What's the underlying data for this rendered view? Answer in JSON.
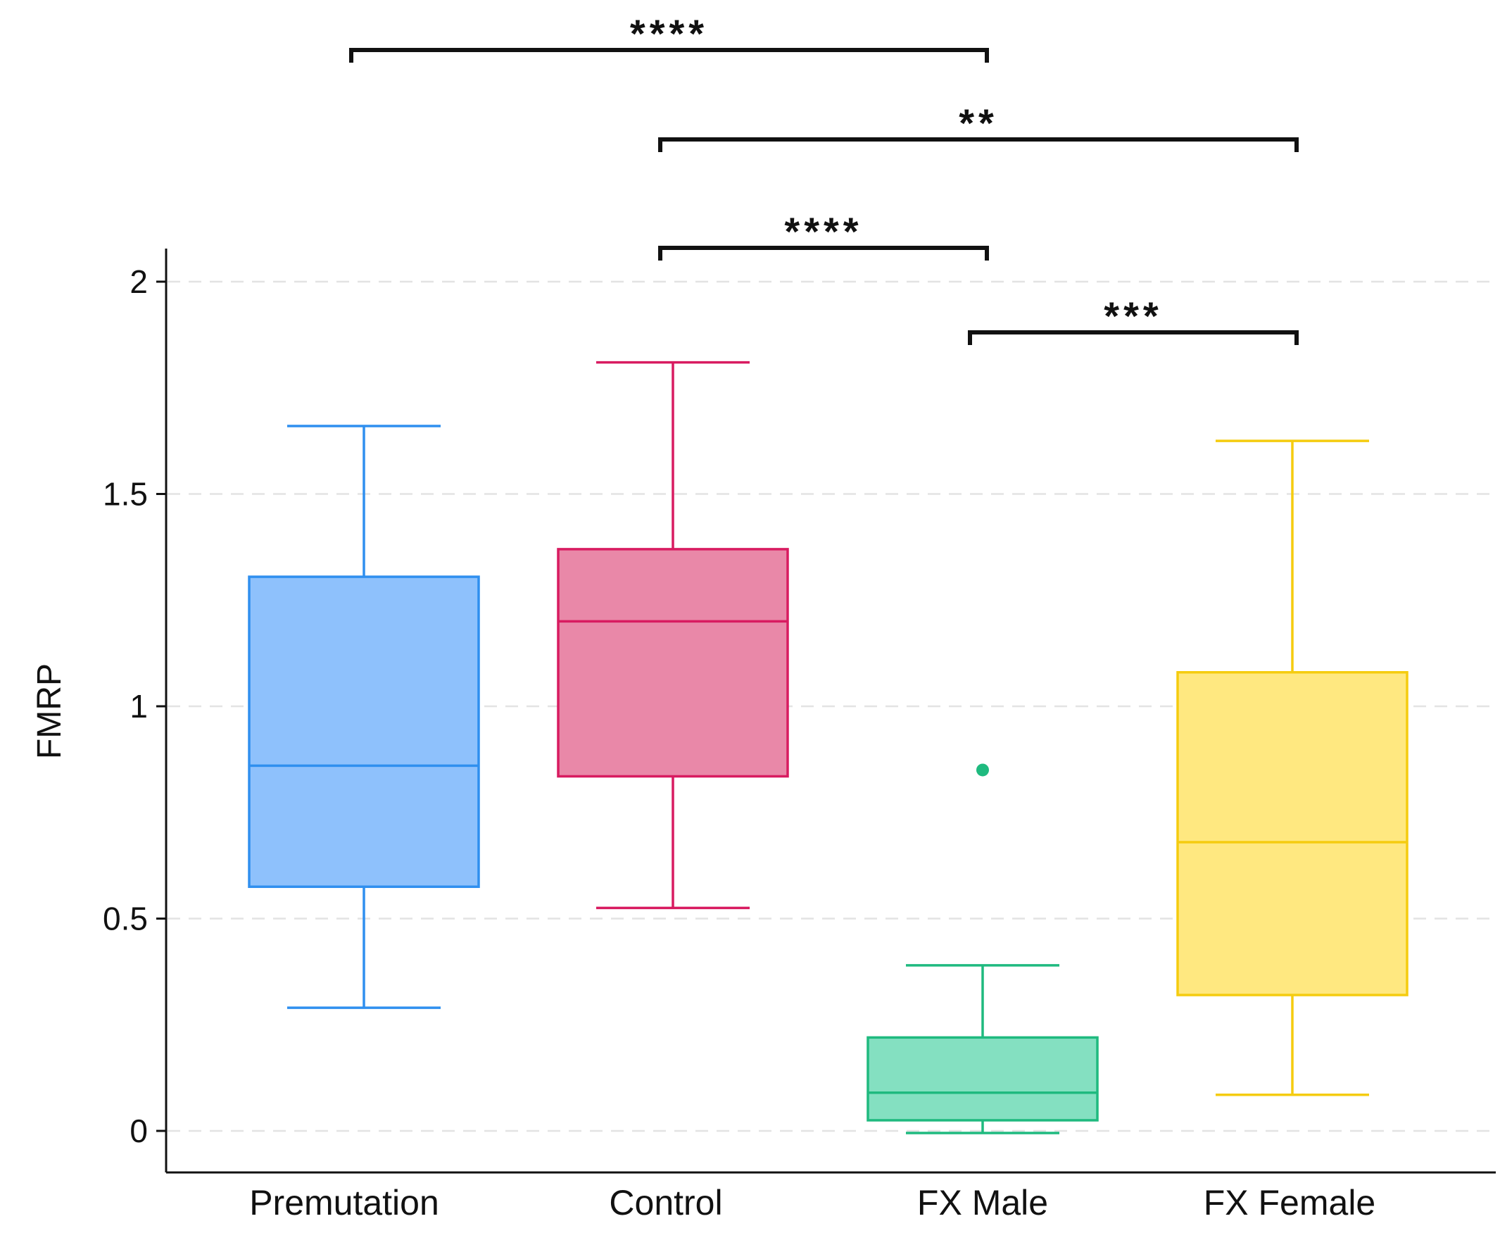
{
  "chart_data": {
    "type": "box",
    "title": "",
    "xlabel": "",
    "ylabel": "FMRP",
    "ylim": [
      -0.09,
      2.09
    ],
    "yticks": [
      0,
      0.5,
      1,
      1.5,
      2
    ],
    "ytick_labels": [
      "0",
      "0.5",
      "1",
      "1.5",
      "2"
    ],
    "grid": "horizontal dashed",
    "categories": [
      "Premutation",
      "Control",
      "FX Male",
      "FX Female"
    ],
    "boxes": [
      {
        "name": "Premutation",
        "whisker_low": 0.29,
        "q1": 0.575,
        "median": 0.86,
        "q3": 1.305,
        "whisker_high": 1.66,
        "outliers": [],
        "fill": "#8ec1fc",
        "stroke": "#2f8fef"
      },
      {
        "name": "Control",
        "whisker_low": 0.525,
        "q1": 0.835,
        "median": 1.2,
        "q3": 1.37,
        "whisker_high": 1.81,
        "outliers": [],
        "fill": "#e988a8",
        "stroke": "#d81b60"
      },
      {
        "name": "FX Male",
        "whisker_low": -0.005,
        "q1": 0.025,
        "median": 0.09,
        "q3": 0.22,
        "whisker_high": 0.39,
        "outliers": [
          0.85
        ],
        "fill": "#84e0c1",
        "stroke": "#1fba7f"
      },
      {
        "name": "FX Female",
        "whisker_low": 0.085,
        "q1": 0.32,
        "median": 0.68,
        "q3": 1.08,
        "whisker_high": 1.625,
        "outliers": [],
        "fill": "#ffe880",
        "stroke": "#f5cc0f"
      }
    ],
    "significance": [
      {
        "from": "Premutation",
        "to": "FX Male",
        "label": "****",
        "level": 4
      },
      {
        "from": "Control",
        "to": "FX Female",
        "label": "**",
        "level": 3
      },
      {
        "from": "Control",
        "to": "FX Male",
        "label": "****",
        "level": 2
      },
      {
        "from": "FX Male",
        "to": "FX Female",
        "label": "***",
        "level": 1
      }
    ]
  }
}
